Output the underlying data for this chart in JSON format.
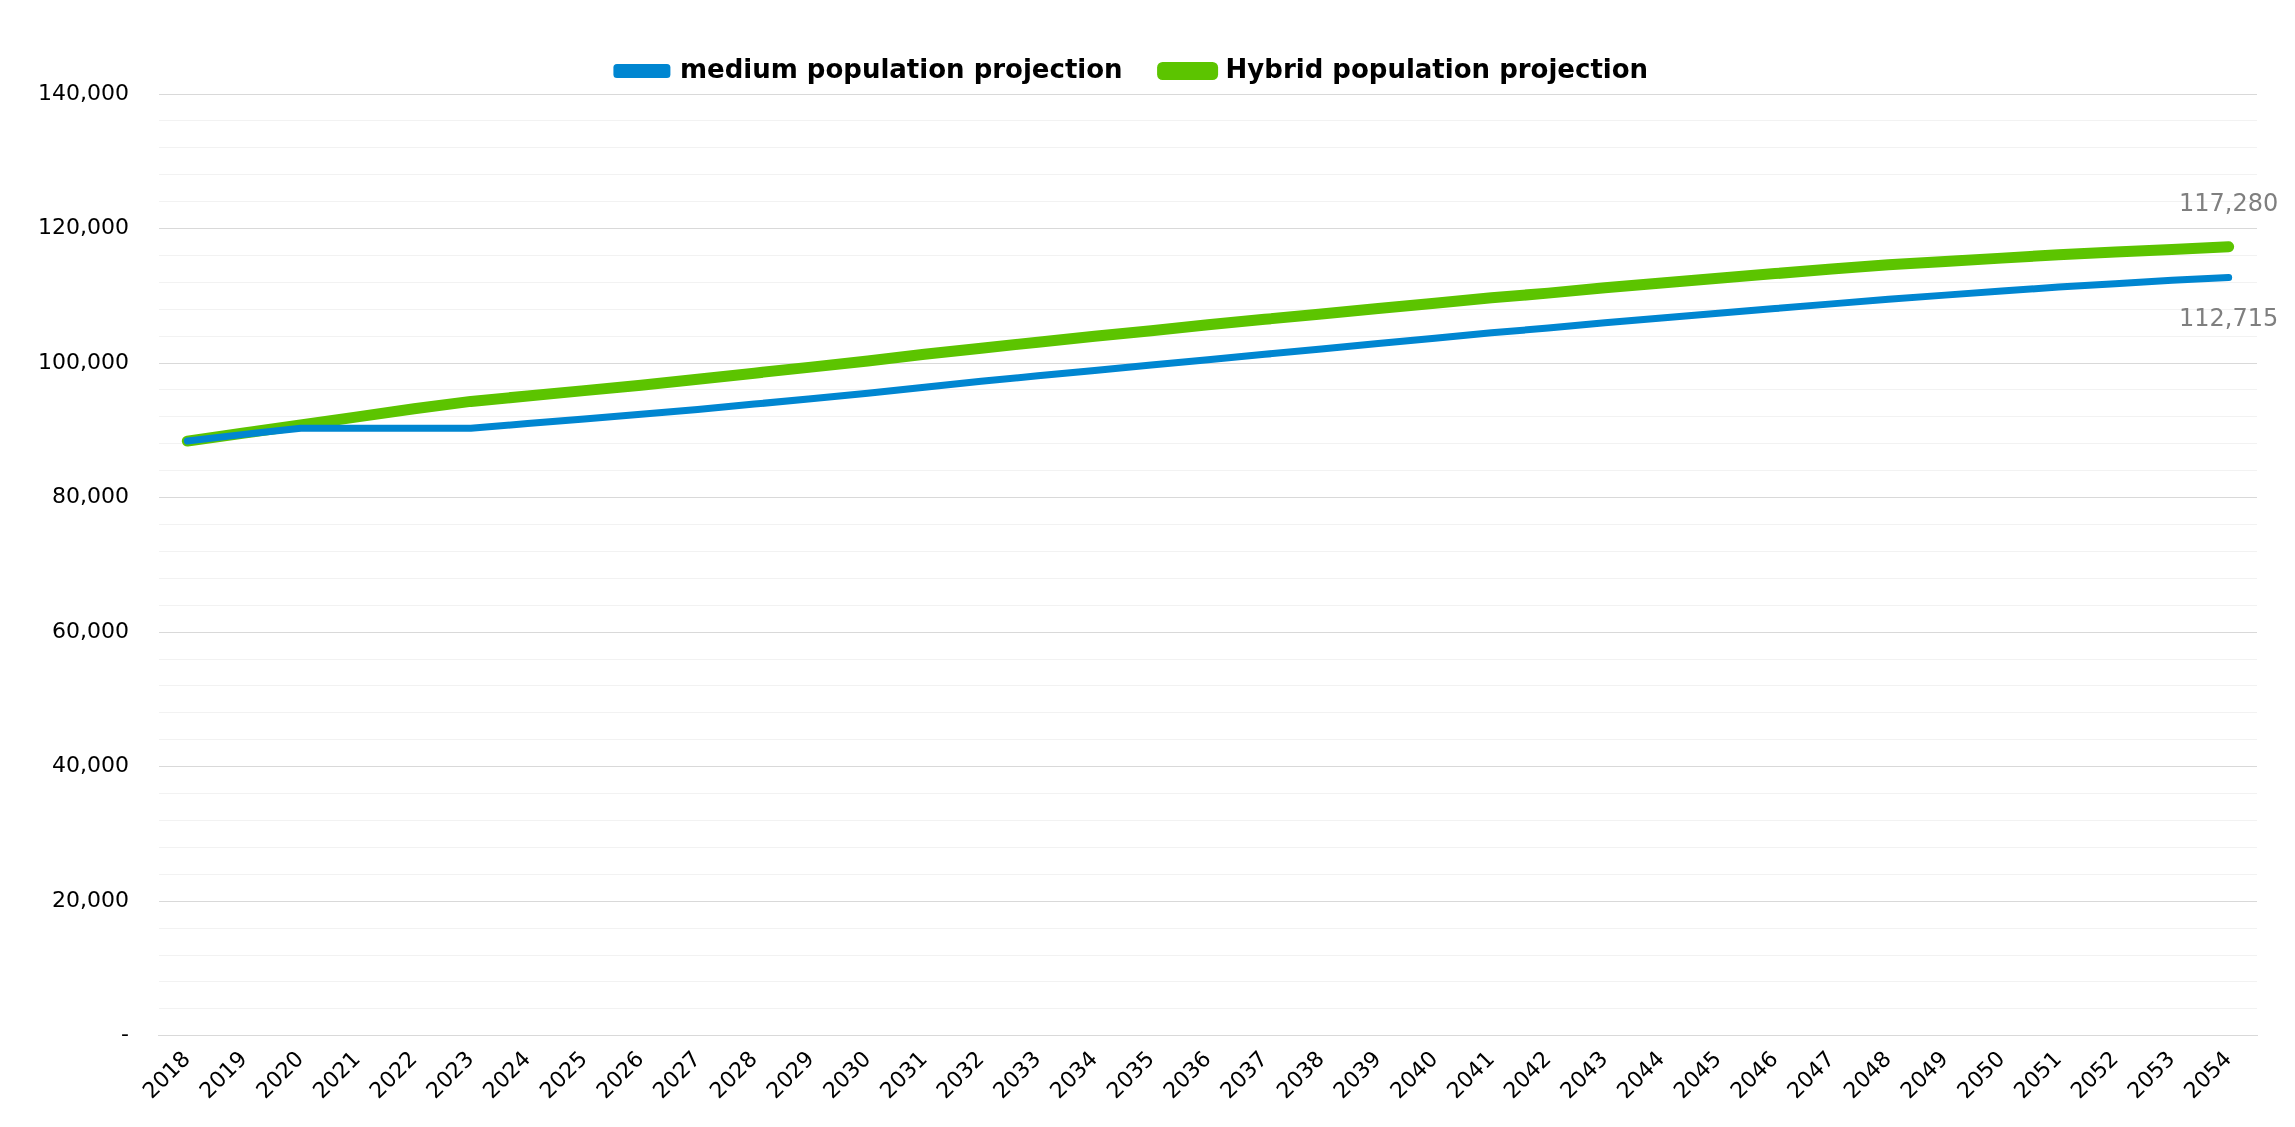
{
  "chart_data": {
    "type": "line",
    "categories": [
      "2018",
      "2019",
      "2020",
      "2021",
      "2022",
      "2023",
      "2024",
      "2025",
      "2026",
      "2027",
      "2028",
      "2029",
      "2030",
      "2031",
      "2032",
      "2033",
      "2034",
      "2035",
      "2036",
      "2037",
      "2038",
      "2039",
      "2040",
      "2041",
      "2042",
      "2043",
      "2044",
      "2045",
      "2046",
      "2047",
      "2048",
      "2049",
      "2050",
      "2051",
      "2052",
      "2053",
      "2054"
    ],
    "series": [
      {
        "name": "medium population projection",
        "color": "#0086d1",
        "values": [
          88400,
          89400,
          90300,
          90300,
          90300,
          90300,
          91000,
          91700,
          92400,
          93100,
          93900,
          94700,
          95500,
          96400,
          97300,
          98100,
          98900,
          99700,
          100500,
          101300,
          102100,
          102900,
          103700,
          104500,
          105200,
          106000,
          106700,
          107400,
          108100,
          108800,
          109500,
          110100,
          110700,
          111300,
          111800,
          112300,
          112715
        ],
        "value_labels": [
          null,
          null,
          null,
          null,
          null,
          null,
          null,
          null,
          null,
          null,
          null,
          null,
          null,
          null,
          null,
          null,
          null,
          null,
          null,
          null,
          null,
          null,
          null,
          null,
          null,
          null,
          null,
          null,
          null,
          null,
          null,
          null,
          null,
          null,
          null,
          null,
          "112,715"
        ]
      },
      {
        "name": "Hybrid population projection",
        "color": "#5cc400",
        "values": [
          88400,
          89600,
          90800,
          92000,
          93200,
          94300,
          95100,
          95900,
          96700,
          97600,
          98500,
          99400,
          100300,
          101300,
          102200,
          103100,
          104000,
          104800,
          105700,
          106500,
          107300,
          108100,
          108900,
          109700,
          110400,
          111200,
          111900,
          112600,
          113300,
          114000,
          114600,
          115100,
          115600,
          116100,
          116500,
          116900,
          117280
        ],
        "value_labels": [
          null,
          null,
          null,
          null,
          null,
          null,
          null,
          null,
          null,
          null,
          null,
          null,
          null,
          null,
          null,
          null,
          null,
          null,
          null,
          null,
          null,
          null,
          null,
          null,
          null,
          null,
          null,
          null,
          null,
          null,
          null,
          null,
          null,
          null,
          null,
          null,
          "117,280"
        ]
      }
    ],
    "ylim": [
      0,
      140000
    ],
    "yticks": [
      {
        "value": 0,
        "label": "-"
      },
      {
        "value": 4000,
        "label": null
      },
      {
        "value": 8000,
        "label": null
      },
      {
        "value": 12000,
        "label": null
      },
      {
        "value": 16000,
        "label": null
      },
      {
        "value": 20000,
        "label": "20,000"
      },
      {
        "value": 24000,
        "label": null
      },
      {
        "value": 28000,
        "label": null
      },
      {
        "value": 32000,
        "label": null
      },
      {
        "value": 36000,
        "label": null
      },
      {
        "value": 40000,
        "label": "40,000"
      },
      {
        "value": 44000,
        "label": null
      },
      {
        "value": 48000,
        "label": null
      },
      {
        "value": 52000,
        "label": null
      },
      {
        "value": 56000,
        "label": null
      },
      {
        "value": 60000,
        "label": "60,000"
      },
      {
        "value": 64000,
        "label": null
      },
      {
        "value": 68000,
        "label": null
      },
      {
        "value": 72000,
        "label": null
      },
      {
        "value": 76000,
        "label": null
      },
      {
        "value": 80000,
        "label": "80,000"
      },
      {
        "value": 84000,
        "label": null
      },
      {
        "value": 88000,
        "label": null
      },
      {
        "value": 92000,
        "label": null
      },
      {
        "value": 96000,
        "label": null
      },
      {
        "value": 100000,
        "label": "100,000"
      },
      {
        "value": 104000,
        "label": null
      },
      {
        "value": 108000,
        "label": null
      },
      {
        "value": 112000,
        "label": null
      },
      {
        "value": 116000,
        "label": null
      },
      {
        "value": 120000,
        "label": "120,000"
      },
      {
        "value": 124000,
        "label": null
      },
      {
        "value": 128000,
        "label": null
      },
      {
        "value": 132000,
        "label": null
      },
      {
        "value": 136000,
        "label": null
      },
      {
        "value": 140000,
        "label": "140,000"
      }
    ],
    "grid": "y",
    "legend": "top",
    "marker": "none",
    "line_style": "solid"
  }
}
